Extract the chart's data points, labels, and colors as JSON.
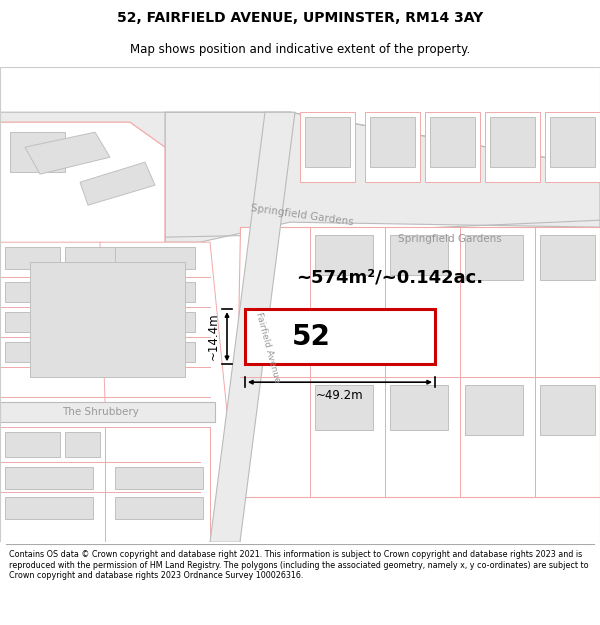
{
  "title": "52, FAIRFIELD AVENUE, UPMINSTER, RM14 3AY",
  "subtitle": "Map shows position and indicative extent of the property.",
  "footer": "Contains OS data © Crown copyright and database right 2021. This information is subject to Crown copyright and database rights 2023 and is reproduced with the permission of HM Land Registry. The polygons (including the associated geometry, namely x, y co-ordinates) are subject to Crown copyright and database rights 2023 Ordnance Survey 100026316.",
  "area_text": "~574m²/~0.142ac.",
  "number_text": "52",
  "dim_width": "~49.2m",
  "dim_height": "~14.4m",
  "street_spring1": "Springfield Gardens",
  "street_spring2": "Springfield Gardens",
  "street_fairfield": "Fairfield Avenue",
  "street_shrub": "The Shrubbery",
  "bg_white": "#ffffff",
  "plot_line": "#f0aaaa",
  "bldg_fill": "#e0e0e0",
  "bldg_line": "#c0c0c0",
  "road_fill": "#e8e8e8",
  "road_line": "#b0b0b0",
  "target_line": "#cc0000",
  "text_gray": "#999999",
  "black": "#000000"
}
